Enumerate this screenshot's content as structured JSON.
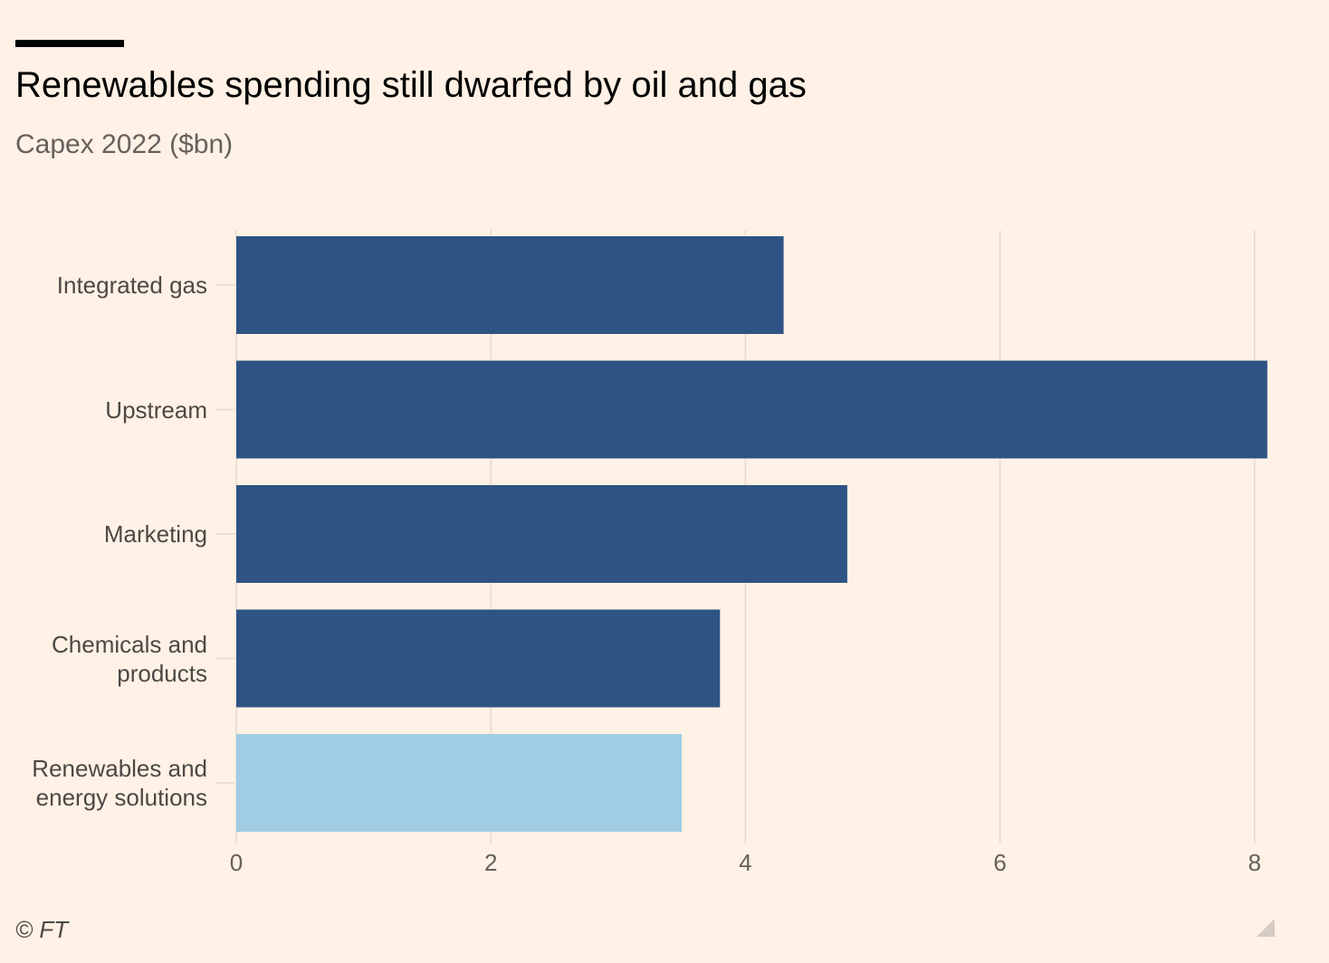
{
  "header": {
    "title": "Renewables spending still dwarfed by oil and gas",
    "subtitle": "Capex 2022 ($bn)"
  },
  "footer": {
    "source": "© FT"
  },
  "colors": {
    "background": "#fff1e5",
    "bar_default": "#2e5384",
    "bar_highlight": "#a0cde3",
    "gridline": "#e6dbd1",
    "tick_text": "#66605c"
  },
  "chart_data": {
    "type": "bar",
    "orientation": "horizontal",
    "title": "Renewables spending still dwarfed by oil and gas",
    "subtitle": "Capex 2022 ($bn)",
    "categories": [
      "Integrated gas",
      "Upstream",
      "Marketing",
      "Chemicals and products",
      "Renewables and energy solutions"
    ],
    "category_lines": [
      [
        "Integrated gas"
      ],
      [
        "Upstream"
      ],
      [
        "Marketing"
      ],
      [
        "Chemicals and",
        "products"
      ],
      [
        "Renewables and",
        "energy solutions"
      ]
    ],
    "values": [
      4.3,
      8.1,
      4.8,
      3.8,
      3.5
    ],
    "highlight": [
      false,
      false,
      false,
      false,
      true
    ],
    "xlim": [
      0,
      8.3
    ],
    "xticks": [
      0,
      2,
      4,
      6,
      8
    ],
    "xlabel": "",
    "ylabel": "",
    "grid": true,
    "legend": "none"
  }
}
